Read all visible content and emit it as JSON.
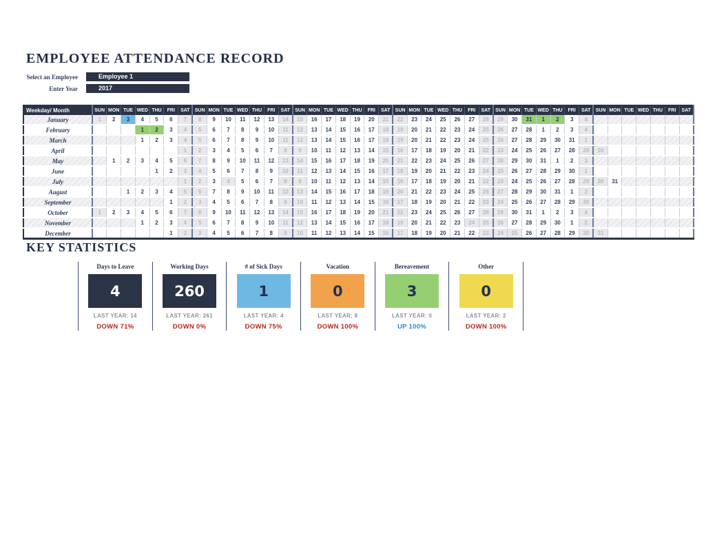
{
  "title": "EMPLOYEE ATTENDANCE RECORD",
  "controls": {
    "employee_label": "Select an Employee",
    "employee_value": "Employee 1",
    "year_label": "Enter Year",
    "year_value": "2017"
  },
  "calendar": {
    "corner_header": "Weekday/ Month",
    "weekdays": [
      "SUN",
      "MON",
      "TUE",
      "WED",
      "THU",
      "FRI",
      "SAT"
    ],
    "weeks": 6,
    "legend_colors": {
      "weekend_bg": "#E8E8EB",
      "sick_bg": "#6FB8E4",
      "bereavement_bg": "#96CE72"
    },
    "months": [
      {
        "name": "January",
        "tinted": true,
        "values": [
          "1",
          "2",
          "3",
          "4",
          "5",
          "6",
          "7",
          "8",
          "9",
          "10",
          "11",
          "12",
          "13",
          "14",
          "15",
          "16",
          "17",
          "18",
          "19",
          "20",
          "21",
          "22",
          "23",
          "24",
          "25",
          "26",
          "27",
          "28",
          "29",
          "30",
          "31",
          "1",
          "2",
          "3",
          "4",
          "",
          "",
          "",
          "",
          "",
          "",
          ""
        ],
        "gray": [
          1,
          7,
          8,
          14,
          15,
          21,
          22,
          28,
          29,
          35
        ],
        "highlights": {
          "3": "sick",
          "31": "bereavement",
          "32": "bereavement",
          "33": "bereavement"
        }
      },
      {
        "name": "February",
        "tinted": false,
        "values": [
          "",
          "",
          "",
          "1",
          "2",
          "3",
          "4",
          "5",
          "6",
          "7",
          "8",
          "9",
          "10",
          "11",
          "12",
          "13",
          "14",
          "15",
          "16",
          "17",
          "18",
          "19",
          "20",
          "21",
          "22",
          "23",
          "24",
          "25",
          "26",
          "27",
          "28",
          "1",
          "2",
          "3",
          "4",
          "",
          "",
          "",
          "",
          "",
          "",
          ""
        ],
        "gray": [
          7,
          8,
          14,
          15,
          21,
          22,
          28,
          29,
          35
        ],
        "highlights": {
          "4": "bereavement",
          "5": "bereavement"
        }
      },
      {
        "name": "March",
        "tinted": true,
        "values": [
          "",
          "",
          "",
          "1",
          "2",
          "3",
          "4",
          "5",
          "6",
          "7",
          "8",
          "9",
          "10",
          "11",
          "12",
          "13",
          "14",
          "15",
          "16",
          "17",
          "18",
          "19",
          "20",
          "21",
          "22",
          "23",
          "24",
          "25",
          "26",
          "27",
          "28",
          "29",
          "30",
          "31",
          "1",
          "",
          "",
          "",
          "",
          "",
          "",
          ""
        ],
        "gray": [
          7,
          8,
          14,
          15,
          21,
          22,
          28,
          29,
          35
        ],
        "highlights": {}
      },
      {
        "name": "April",
        "tinted": false,
        "values": [
          "",
          "",
          "",
          "",
          "",
          "",
          "1",
          "2",
          "3",
          "4",
          "5",
          "6",
          "7",
          "8",
          "9",
          "10",
          "11",
          "12",
          "13",
          "14",
          "15",
          "16",
          "17",
          "18",
          "19",
          "20",
          "21",
          "22",
          "23",
          "24",
          "25",
          "26",
          "27",
          "28",
          "29",
          "30",
          "",
          "",
          "",
          "",
          "",
          ""
        ],
        "gray": [
          7,
          8,
          14,
          15,
          21,
          22,
          28,
          29,
          35,
          36
        ],
        "highlights": {}
      },
      {
        "name": "May",
        "tinted": true,
        "values": [
          "",
          "1",
          "2",
          "3",
          "4",
          "5",
          "6",
          "7",
          "8",
          "9",
          "10",
          "11",
          "12",
          "13",
          "14",
          "15",
          "16",
          "17",
          "18",
          "19",
          "20",
          "21",
          "22",
          "23",
          "24",
          "25",
          "26",
          "27",
          "28",
          "29",
          "30",
          "31",
          "1",
          "2",
          "3",
          "",
          "",
          "",
          "",
          "",
          "",
          ""
        ],
        "gray": [
          7,
          8,
          14,
          15,
          21,
          22,
          28,
          29,
          35
        ],
        "highlights": {}
      },
      {
        "name": "June",
        "tinted": false,
        "values": [
          "",
          "",
          "",
          "",
          "1",
          "2",
          "3",
          "4",
          "5",
          "6",
          "7",
          "8",
          "9",
          "10",
          "11",
          "12",
          "13",
          "14",
          "15",
          "16",
          "17",
          "18",
          "19",
          "20",
          "21",
          "22",
          "23",
          "24",
          "25",
          "26",
          "27",
          "28",
          "29",
          "30",
          "1",
          "",
          "",
          "",
          "",
          "",
          "",
          ""
        ],
        "gray": [
          7,
          8,
          14,
          15,
          21,
          22,
          28,
          29,
          35
        ],
        "highlights": {}
      },
      {
        "name": "July",
        "tinted": true,
        "values": [
          "",
          "",
          "",
          "",
          "",
          "",
          "1",
          "2",
          "3",
          "4",
          "5",
          "6",
          "7",
          "8",
          "9",
          "10",
          "11",
          "12",
          "13",
          "14",
          "15",
          "16",
          "17",
          "18",
          "19",
          "20",
          "21",
          "22",
          "23",
          "24",
          "25",
          "26",
          "27",
          "28",
          "29",
          "30",
          "31",
          "",
          "",
          "",
          "",
          ""
        ],
        "gray": [
          7,
          8,
          10,
          14,
          15,
          21,
          22,
          28,
          29,
          35,
          36
        ],
        "highlights": {}
      },
      {
        "name": "August",
        "tinted": false,
        "values": [
          "",
          "",
          "1",
          "2",
          "3",
          "4",
          "5",
          "6",
          "7",
          "8",
          "9",
          "10",
          "11",
          "12",
          "13",
          "14",
          "15",
          "16",
          "17",
          "18",
          "19",
          "20",
          "21",
          "22",
          "23",
          "24",
          "25",
          "26",
          "27",
          "28",
          "29",
          "30",
          "31",
          "1",
          "2",
          "",
          "",
          "",
          "",
          "",
          "",
          ""
        ],
        "gray": [
          7,
          8,
          14,
          15,
          21,
          22,
          28,
          29,
          35
        ],
        "highlights": {}
      },
      {
        "name": "September",
        "tinted": true,
        "values": [
          "",
          "",
          "",
          "",
          "",
          "1",
          "2",
          "3",
          "4",
          "5",
          "6",
          "7",
          "8",
          "9",
          "10",
          "11",
          "12",
          "13",
          "14",
          "15",
          "16",
          "17",
          "18",
          "19",
          "20",
          "21",
          "22",
          "23",
          "24",
          "25",
          "26",
          "27",
          "28",
          "29",
          "30",
          "",
          "",
          "",
          "",
          "",
          "",
          ""
        ],
        "gray": [
          7,
          8,
          14,
          15,
          21,
          22,
          28,
          29,
          35
        ],
        "highlights": {}
      },
      {
        "name": "October",
        "tinted": false,
        "values": [
          "1",
          "2",
          "3",
          "4",
          "5",
          "6",
          "7",
          "8",
          "9",
          "10",
          "11",
          "12",
          "13",
          "14",
          "15",
          "16",
          "17",
          "18",
          "19",
          "20",
          "21",
          "22",
          "23",
          "24",
          "25",
          "26",
          "27",
          "28",
          "29",
          "30",
          "31",
          "1",
          "2",
          "3",
          "4",
          "",
          "",
          "",
          "",
          "",
          "",
          ""
        ],
        "gray": [
          1,
          7,
          8,
          14,
          15,
          21,
          22,
          28,
          29,
          35
        ],
        "highlights": {}
      },
      {
        "name": "November",
        "tinted": true,
        "values": [
          "",
          "",
          "",
          "1",
          "2",
          "3",
          "4",
          "5",
          "6",
          "7",
          "8",
          "9",
          "10",
          "11",
          "12",
          "13",
          "14",
          "15",
          "16",
          "17",
          "18",
          "19",
          "20",
          "21",
          "22",
          "23",
          "24",
          "25",
          "26",
          "27",
          "28",
          "29",
          "30",
          "1",
          "2",
          "",
          "",
          "",
          "",
          "",
          "",
          ""
        ],
        "gray": [
          7,
          8,
          14,
          15,
          21,
          22,
          27,
          28,
          29,
          35
        ],
        "highlights": {}
      },
      {
        "name": "December",
        "tinted": false,
        "values": [
          "",
          "",
          "",
          "",
          "",
          "1",
          "2",
          "3",
          "4",
          "5",
          "6",
          "7",
          "8",
          "9",
          "10",
          "11",
          "12",
          "13",
          "14",
          "15",
          "16",
          "17",
          "18",
          "19",
          "20",
          "21",
          "22",
          "23",
          "24",
          "25",
          "26",
          "27",
          "28",
          "29",
          "30",
          "31",
          "",
          "",
          "",
          "",
          "",
          ""
        ],
        "gray": [
          7,
          8,
          14,
          15,
          21,
          22,
          28,
          29,
          30,
          35,
          36
        ],
        "highlights": {}
      }
    ]
  },
  "key_statistics": {
    "heading": "KEY STATISTICS",
    "cards": [
      {
        "label": "Days to Leave",
        "value": "4",
        "box_color": "#2B3447",
        "value_color": "#FFFFFF",
        "last_year": "LAST YEAR: 14",
        "change": "DOWN 71%",
        "change_color": "#B3281E"
      },
      {
        "label": "Working Days",
        "value": "260",
        "box_color": "#2B3447",
        "value_color": "#FFFFFF",
        "last_year": "LAST YEAR: 261",
        "change": "DOWN 0%",
        "change_color": "#B3281E"
      },
      {
        "label": "# of Sick Days",
        "value": "1",
        "box_color": "#6FB8E4",
        "value_color": "#243152",
        "last_year": "LAST YEAR: 4",
        "change": "DOWN 75%",
        "change_color": "#B3281E"
      },
      {
        "label": "Vacation",
        "value": "0",
        "box_color": "#F2A24A",
        "value_color": "#243152",
        "last_year": "LAST YEAR: 8",
        "change": "DOWN 100%",
        "change_color": "#B3281E"
      },
      {
        "label": "Bereavement",
        "value": "3",
        "box_color": "#96CE72",
        "value_color": "#243152",
        "last_year": "LAST YEAR: 0",
        "change": "UP 100%",
        "change_color": "#2E86C8"
      },
      {
        "label": "Other",
        "value": "0",
        "box_color": "#EFD94F",
        "value_color": "#243152",
        "last_year": "LAST YEAR: 2",
        "change": "DOWN 100%",
        "change_color": "#B3281E"
      }
    ]
  }
}
